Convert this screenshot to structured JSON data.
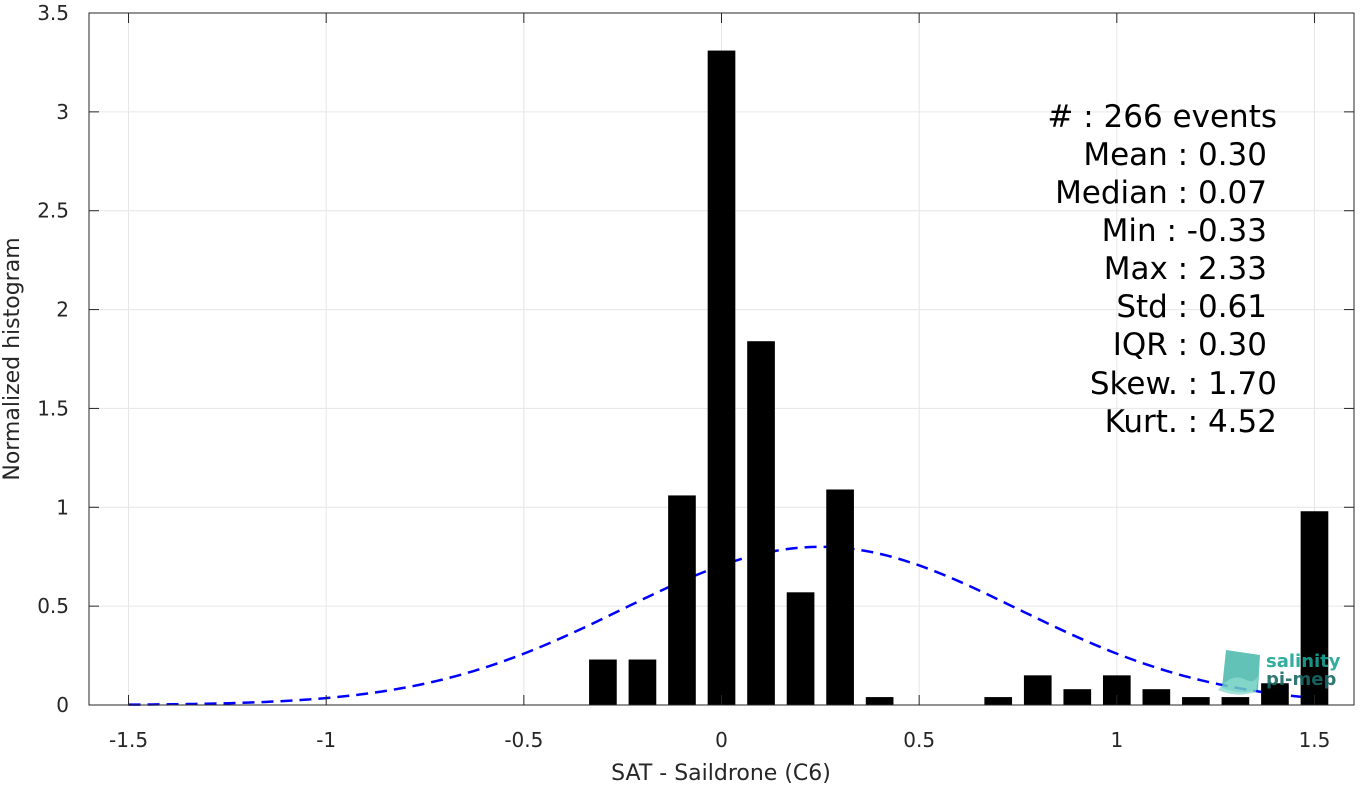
{
  "chart_data": {
    "type": "bar",
    "xlabel": "SAT - Saildrone (C6)",
    "ylabel": "Normalized histogram",
    "xlim": [
      -1.6,
      1.6
    ],
    "ylim": [
      0,
      3.5
    ],
    "xticks": [
      -1.5,
      -1,
      -0.5,
      0,
      0.5,
      1,
      1.5
    ],
    "xtick_labels": [
      "-1.5",
      "-1",
      "-0.5",
      "0",
      "0.5",
      "1",
      "1.5"
    ],
    "yticks": [
      0,
      0.5,
      1,
      1.5,
      2,
      2.5,
      3,
      3.5
    ],
    "ytick_labels": [
      "0",
      "0.5",
      "1",
      "1.5",
      "2",
      "2.5",
      "3",
      "3.5"
    ],
    "grid": true,
    "bar_width": 0.07,
    "bar_color": "#000000",
    "bars": [
      {
        "x": -0.3,
        "y": 0.23
      },
      {
        "x": -0.2,
        "y": 0.23
      },
      {
        "x": -0.1,
        "y": 1.06
      },
      {
        "x": 0.0,
        "y": 3.31
      },
      {
        "x": 0.1,
        "y": 1.84
      },
      {
        "x": 0.2,
        "y": 0.57
      },
      {
        "x": 0.3,
        "y": 1.09
      },
      {
        "x": 0.4,
        "y": 0.04
      },
      {
        "x": 0.7,
        "y": 0.04
      },
      {
        "x": 0.8,
        "y": 0.15
      },
      {
        "x": 0.9,
        "y": 0.08
      },
      {
        "x": 1.0,
        "y": 0.15
      },
      {
        "x": 1.1,
        "y": 0.08
      },
      {
        "x": 1.2,
        "y": 0.04
      },
      {
        "x": 1.3,
        "y": 0.04
      },
      {
        "x": 1.4,
        "y": 0.11
      },
      {
        "x": 1.5,
        "y": 0.98
      }
    ],
    "fit": {
      "type": "normal",
      "mean": 0.25,
      "std": 0.5,
      "peak": 0.8,
      "x_range": [
        -1.5,
        1.5
      ],
      "color": "#0000ff",
      "style": "dashed"
    }
  },
  "stats": [
    {
      "label": "#  : 266 events"
    },
    {
      "label": "Mean : 0.30"
    },
    {
      "label": "Median : 0.07"
    },
    {
      "label": "Min : -0.33"
    },
    {
      "label": "Max : 2.33"
    },
    {
      "label": "Std : 0.61"
    },
    {
      "label": "IQR : 0.30"
    },
    {
      "label": "Skew. : 1.70"
    },
    {
      "label": "Kurt. : 4.52"
    }
  ],
  "logo": {
    "line1": "salinity",
    "line2": "pi-mep",
    "color": "#1aa595"
  }
}
